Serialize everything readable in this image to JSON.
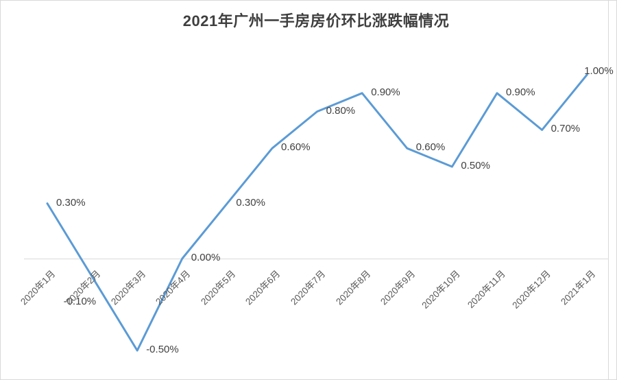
{
  "chart_data": {
    "type": "line",
    "title": "2021年广州一手房房价环比涨跌幅情况",
    "categories": [
      "2020年1月",
      "2020年2月",
      "2020年3月",
      "2020年4月",
      "2020年5月",
      "2020年6月",
      "2020年7月",
      "2020年8月",
      "2020年9月",
      "2020年10月",
      "2020年11月",
      "2020年12月",
      "2021年1月"
    ],
    "values": [
      0.3,
      -0.1,
      -0.5,
      0.0,
      0.3,
      0.6,
      0.8,
      0.9,
      0.6,
      0.5,
      0.9,
      0.7,
      1.0
    ],
    "data_labels": [
      "0.30%",
      "-0.10%",
      "-0.50%",
      "0.00%",
      "0.30%",
      "0.60%",
      "0.80%",
      "0.90%",
      "0.60%",
      "0.50%",
      "0.90%",
      "0.70%",
      "1.00%"
    ],
    "unit": "%",
    "xlabel": "",
    "ylabel": "",
    "ylim": [
      -0.6,
      1.1
    ],
    "grid": false,
    "legend": "none",
    "y_axis_ticks": "hidden",
    "zero_baseline": true
  },
  "colors": {
    "line": "#5B9BD5",
    "title_text": "#3f3f3f",
    "data_label_text": "#404040",
    "axis_label_text": "#595959",
    "grid_line": "#d9d9d9",
    "background": "#ffffff"
  }
}
